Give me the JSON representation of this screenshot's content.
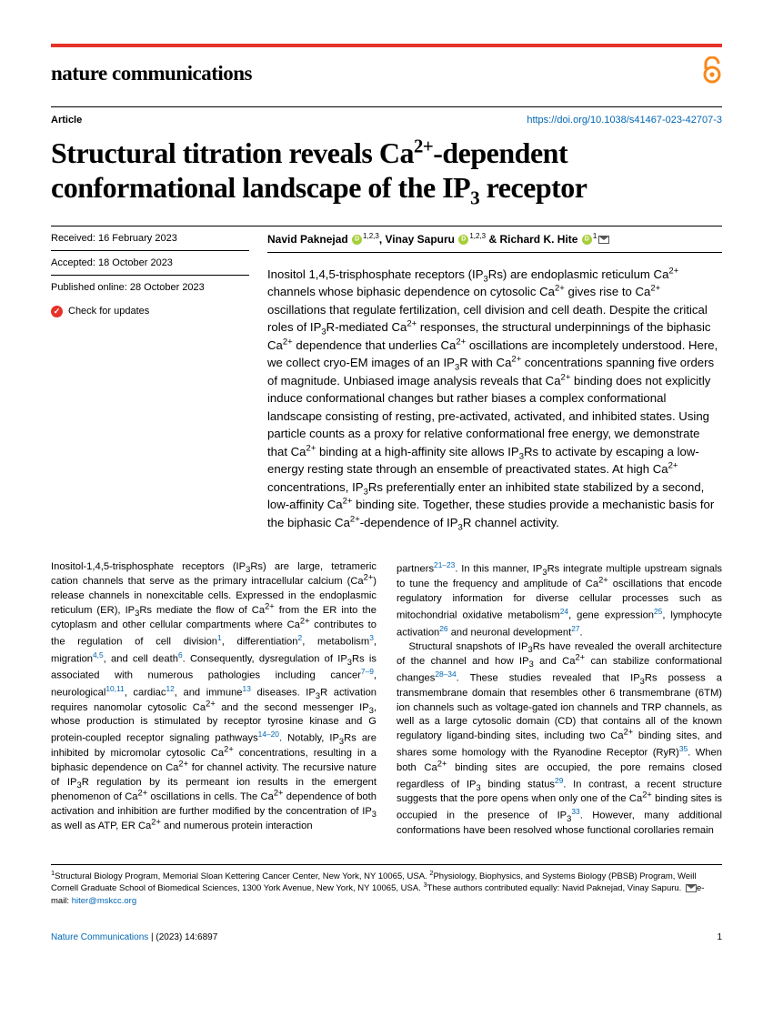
{
  "journal": {
    "name": "nature communications"
  },
  "header": {
    "article_label": "Article",
    "doi_url": "https://doi.org/10.1038/s41467-023-42707-3"
  },
  "title_html": "Structural titration reveals Ca<sup>2+</sup>-dependent conformational landscape of the IP<sub>3</sub> receptor",
  "dates": {
    "received": "Received: 16 February 2023",
    "accepted": "Accepted: 18 October 2023",
    "published": "Published online: 28 October 2023",
    "check_updates": "Check for updates"
  },
  "authors_html": "Navid Paknejad&nbsp;<span class='orcid'></span><sup>1,2,3</sup>, Vinay Sapuru&nbsp;<span class='orcid'></span><sup>1,2,3</sup> &amp; Richard K. Hite&nbsp;<span class='orcid'></span><sup>1</sup><span class='mail-icon'></span>",
  "abstract_html": "Inositol 1,4,5-trisphosphate receptors (IP<sub>3</sub>Rs) are endoplasmic reticulum Ca<sup>2+</sup> channels whose biphasic dependence on cytosolic Ca<sup>2+</sup> gives rise to Ca<sup>2+</sup> oscillations that regulate fertilization, cell division and cell death. Despite the critical roles of IP<sub>3</sub>R-mediated Ca<sup>2+</sup> responses, the structural underpinnings of the biphasic Ca<sup>2+</sup> dependence that underlies Ca<sup>2+</sup> oscillations are incompletely understood. Here, we collect cryo-EM images of an IP<sub>3</sub>R with Ca<sup>2+</sup> concentrations spanning five orders of magnitude. Unbiased image analysis reveals that Ca<sup>2+</sup> binding does not explicitly induce conformational changes but rather biases a complex conformational landscape consisting of resting, pre-activated, activated, and inhibited states. Using particle counts as a proxy for relative conformational free energy, we demonstrate that Ca<sup>2+</sup> binding at a high-affinity site allows IP<sub>3</sub>Rs to activate by escaping a low-energy resting state through an ensemble of preactivated states. At high Ca<sup>2+</sup> concentrations, IP<sub>3</sub>Rs preferentially enter an inhibited state stabilized by a second, low-affinity Ca<sup>2+</sup> binding site. Together, these studies provide a mechanistic basis for the biphasic Ca<sup>2+</sup>-dependence of IP<sub>3</sub>R channel activity.",
  "body": {
    "col1_html": "<p class='justify'>Inositol-1,4,5-trisphosphate receptors (IP<sub>3</sub>Rs) are large, tetrameric cation channels that serve as the primary intracellular calcium (Ca<sup>2+</sup>) release channels in nonexcitable cells. Expressed in the endoplasmic reticulum (ER), IP<sub>3</sub>Rs mediate the flow of Ca<sup>2+</sup> from the ER into the cytoplasm and other cellular compartments where Ca<sup>2+</sup> contributes to the regulation of cell division<span class='cite'>1</span>, differentiation<span class='cite'>2</span>, metabolism<span class='cite'>3</span>, migration<span class='cite'>4,5</span>, and cell death<span class='cite'>6</span>. Consequently, dysregulation of IP<sub>3</sub>Rs is associated with numerous pathologies including cancer<span class='cite'>7–9</span>, neurological<span class='cite'>10,11</span>, cardiac<span class='cite'>12</span>, and immune<span class='cite'>13</span> diseases. IP<sub>3</sub>R activation requires nanomolar cytosolic Ca<sup>2+</sup> and the second messenger IP<sub>3</sub>, whose production is stimulated by receptor tyrosine kinase and G protein-coupled receptor signaling pathways<span class='cite'>14–20</span>. Notably, IP<sub>3</sub>Rs are inhibited by micromolar cytosolic Ca<sup>2+</sup> concentrations, resulting in a biphasic dependence on Ca<sup>2+</sup> for channel activity. The recursive nature of IP<sub>3</sub>R regulation by its permeant ion results in the emergent phenomenon of Ca<sup>2+</sup> oscillations in cells. The Ca<sup>2+</sup> dependence of both activation and inhibition are further modified by the concentration of IP<sub>3</sub> as well as ATP, ER Ca<sup>2+</sup> and numerous protein interaction</p>",
    "col2_html": "<p class='justify'>partners<span class='cite'>21–23</span>. In this manner, IP<sub>3</sub>Rs integrate multiple upstream signals to tune the frequency and amplitude of Ca<sup>2+</sup> oscillations that encode regulatory information for diverse cellular processes such as mitochondrial oxidative metabolism<span class='cite'>24</span>, gene expression<span class='cite'>25</span>, lymphocyte activation<span class='cite'>26</span> and neuronal development<span class='cite'>27</span>.</p><p class='justify'>Structural snapshots of IP<sub>3</sub>Rs have revealed the overall architecture of the channel and how IP<sub>3</sub> and Ca<sup>2+</sup> can stabilize conformational changes<span class='cite'>28–34</span>. These studies revealed that IP<sub>3</sub>Rs possess a transmembrane domain that resembles other 6 transmembrane (6TM) ion channels such as voltage-gated ion channels and TRP channels, as well as a large cytosolic domain (CD) that contains all of the known regulatory ligand-binding sites, including two Ca<sup>2+</sup> binding sites, and shares some homology with the Ryanodine Receptor (RyR)<span class='cite'>35</span>. When both Ca<sup>2+</sup> binding sites are occupied, the pore remains closed regardless of IP<sub>3</sub> binding status<span class='cite'>29</span>. In contrast, a recent structure suggests that the pore opens when only one of the Ca<sup>2+</sup> binding sites is occupied in the presence of IP<sub>3</sub><span class='cite'>33</span>. However, many additional conformations have been resolved whose functional corollaries remain</p>"
  },
  "affiliations_html": "<sup>1</sup>Structural Biology Program, Memorial Sloan Kettering Cancer Center, New York, NY 10065, USA. <sup>2</sup>Physiology, Biophysics, and Systems Biology (PBSB) Program, Weill Cornell Graduate School of Biomedical Sciences, 1300 York Avenue, New York, NY 10065, USA. <sup>3</sup>These authors contributed equally: Navid Paknejad, Vinay Sapuru. <span class='mail-icon'></span>e-mail: <span style='color:#0066b3'>hiter@mskcc.org</span>",
  "footer": {
    "journal_ref_pre": "Nature Communications",
    "journal_ref_post": " |        (2023) 14:6897",
    "page_num": "1"
  },
  "colors": {
    "accent_red": "#e63329",
    "link_blue": "#0066b3",
    "oa_orange": "#f68a1e",
    "orcid_green": "#a6ce39"
  }
}
